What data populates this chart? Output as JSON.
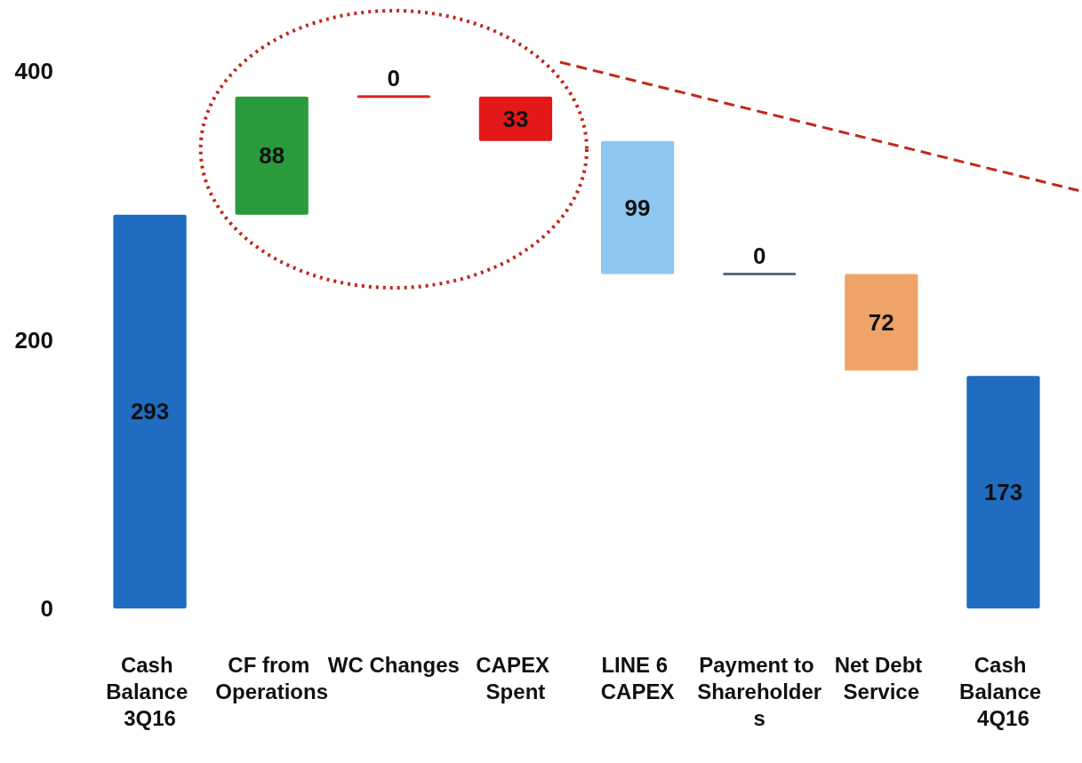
{
  "chart_data": {
    "type": "bar",
    "categories": [
      "Cash Balance 3Q16",
      "CF from Operations",
      "WC Changes",
      "CAPEX Spent",
      "LINE 6 CAPEX",
      "Payment to Shareholders",
      "Net Debt Service",
      "Cash Balance 4Q16"
    ],
    "values": [
      293,
      88,
      0,
      33,
      99,
      0,
      72,
      173
    ],
    "base": [
      0,
      293,
      381,
      348,
      249,
      249,
      177,
      0
    ],
    "colors": [
      "#1f6cc0",
      "#2a9a3c",
      "#e02020",
      "#e41818",
      "#8ec6f0",
      "#5a6a7a",
      "#eea468",
      "#1f6cc0"
    ],
    "ylim": [
      0,
      400
    ],
    "yticks": [
      0,
      200,
      400
    ],
    "data_labels": true,
    "grid": false
  }
}
